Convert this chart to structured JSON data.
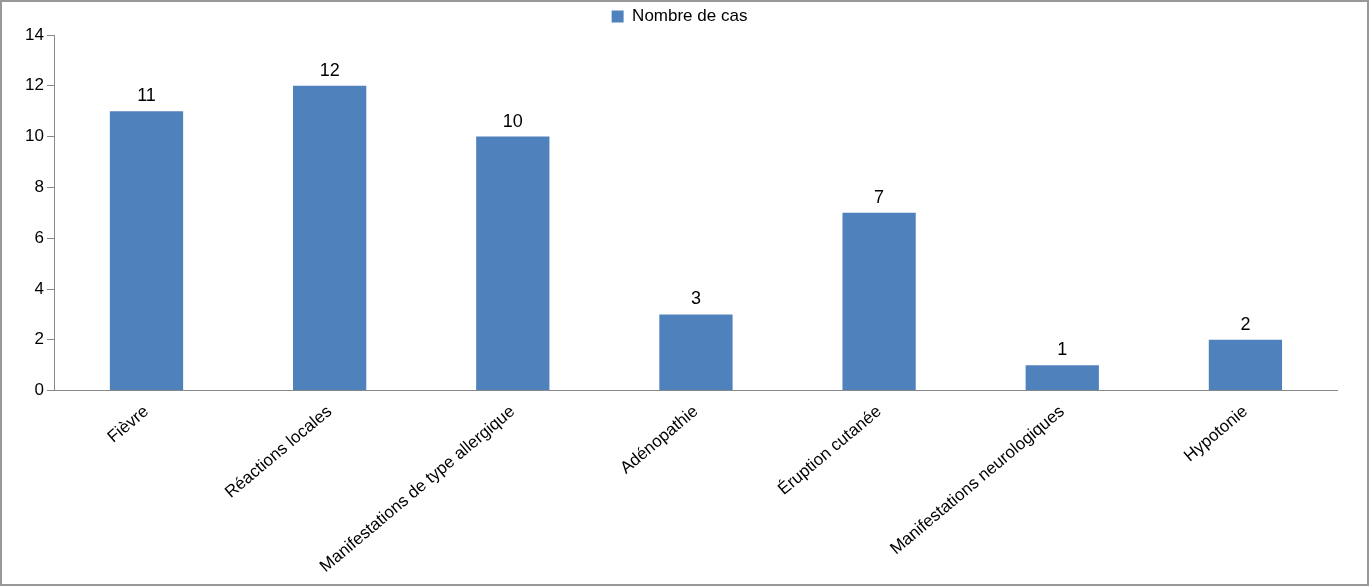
{
  "chart_data": {
    "type": "bar",
    "categories": [
      "Fièvre",
      "Réactions locales",
      "Manifestations de type allergique",
      "Adénopathie",
      "Éruption cutanée",
      "Manifestations neurologiques",
      "Hypotonie"
    ],
    "series": [
      {
        "name": "Nombre de cas",
        "color": "#4f81bd",
        "values": [
          11,
          12,
          10,
          3,
          7,
          1,
          2
        ]
      }
    ],
    "ylim": [
      0,
      14
    ],
    "yticks": [
      0,
      2,
      4,
      6,
      8,
      10,
      12,
      14
    ],
    "grid": false,
    "legend": "top",
    "data_labels": true
  }
}
